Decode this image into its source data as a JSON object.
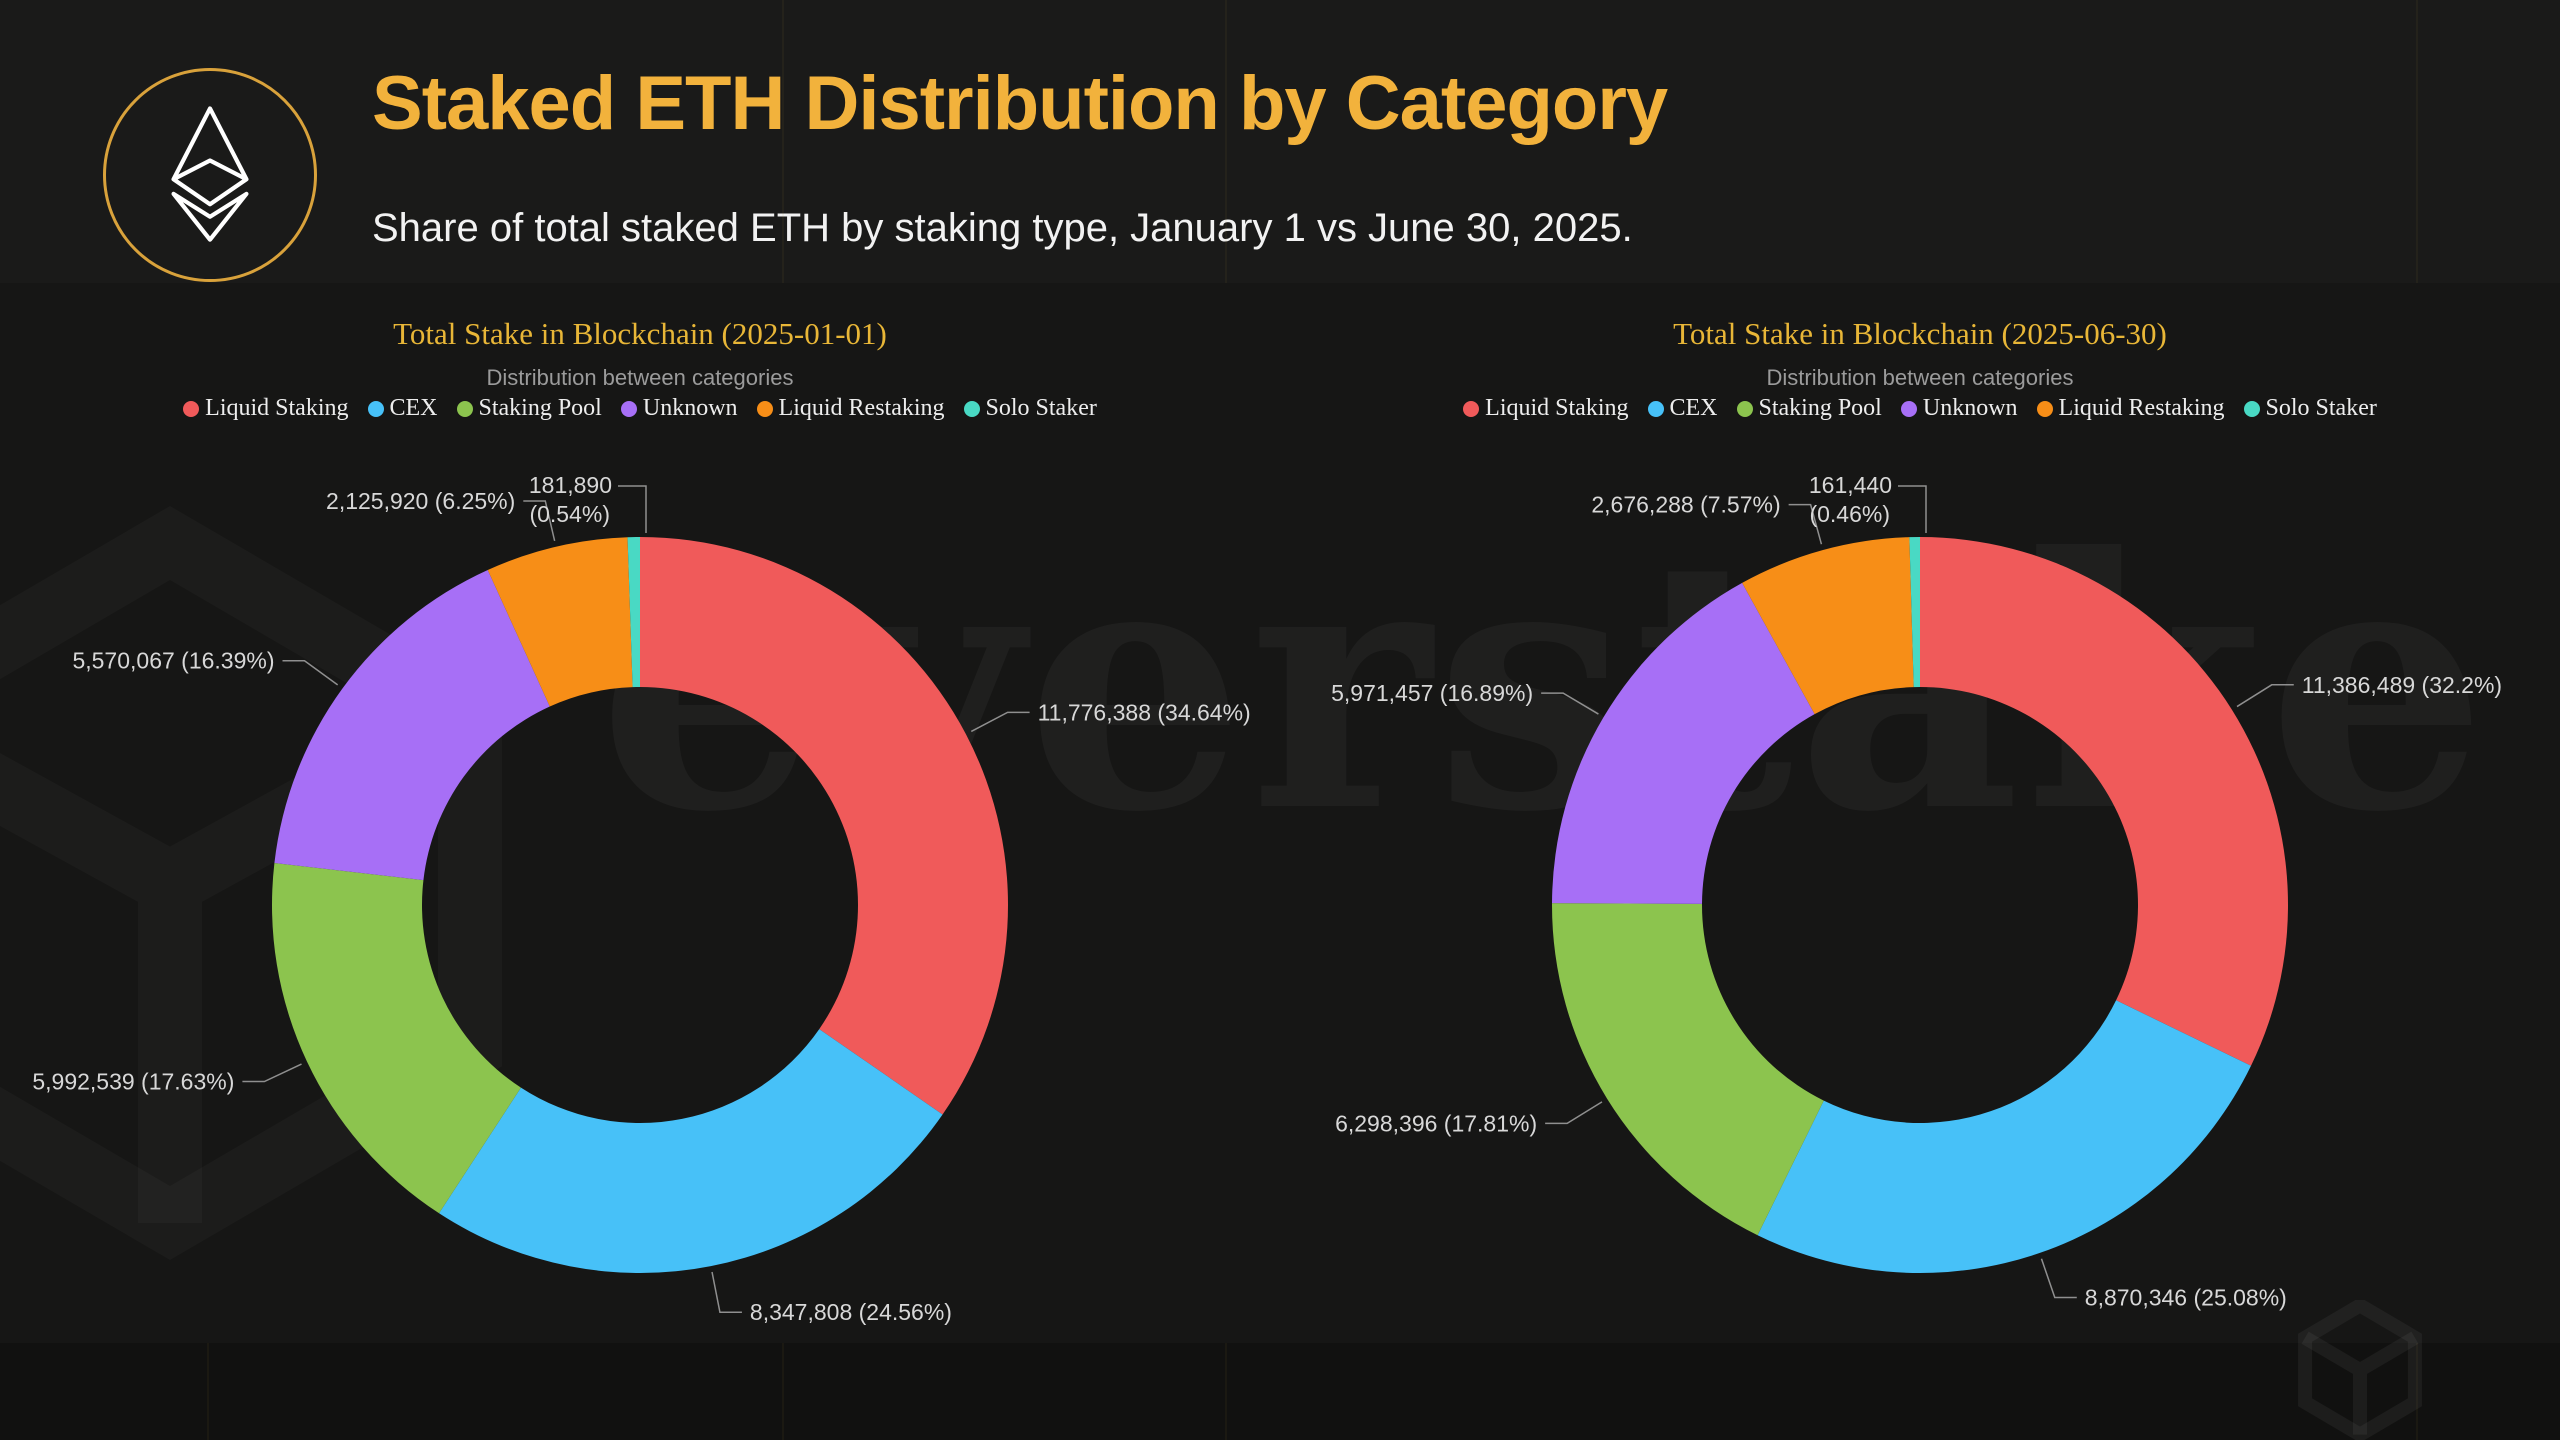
{
  "header": {
    "title": "Staked ETH Distribution by Category",
    "subtitle": "Share of total staked ETH by staking type, January 1 vs June 30, 2025.",
    "logo": "ethereum-logo",
    "accent_color": "#F2B23C"
  },
  "background": {
    "page": "#111110",
    "header_band": "#1A1A19",
    "chart_area": "#161615"
  },
  "watermark": {
    "text": "everstake"
  },
  "categories": [
    {
      "name": "Liquid Staking",
      "color": "#F05A5A"
    },
    {
      "name": "CEX",
      "color": "#47C1F8"
    },
    {
      "name": "Staking Pool",
      "color": "#8CC44E"
    },
    {
      "name": "Unknown",
      "color": "#A76FF6"
    },
    {
      "name": "Liquid Restaking",
      "color": "#F78E17"
    },
    {
      "name": "Solo Staker",
      "color": "#49D9C4"
    }
  ],
  "chart_data": [
    {
      "type": "pie",
      "donut": true,
      "title": "Total Stake in Blockchain (2025-01-01)",
      "subtitle": "Distribution between categories",
      "legend_position": "top",
      "categories": [
        "Liquid Staking",
        "CEX",
        "Staking Pool",
        "Unknown",
        "Liquid Restaking",
        "Solo Staker"
      ],
      "slices": [
        {
          "category": "Liquid Staking",
          "value": 11776388,
          "value_label": "11,776,388",
          "pct": 34.64,
          "pct_label": "34.64%"
        },
        {
          "category": "CEX",
          "value": 8347808,
          "value_label": "8,347,808",
          "pct": 24.56,
          "pct_label": "24.56%"
        },
        {
          "category": "Staking Pool",
          "value": 5992539,
          "value_label": "5,992,539",
          "pct": 17.63,
          "pct_label": "17.63%"
        },
        {
          "category": "Unknown",
          "value": 5570067,
          "value_label": "5,570,067",
          "pct": 16.39,
          "pct_label": "16.39%"
        },
        {
          "category": "Liquid Restaking",
          "value": 2125920,
          "value_label": "2,125,920",
          "pct": 6.25,
          "pct_label": "6.25%"
        },
        {
          "category": "Solo Staker",
          "value": 181890,
          "value_label": "181,890",
          "pct": 0.54,
          "pct_label": "0.54%"
        }
      ]
    },
    {
      "type": "pie",
      "donut": true,
      "title": "Total Stake in Blockchain (2025-06-30)",
      "subtitle": "Distribution between categories",
      "legend_position": "top",
      "categories": [
        "Liquid Staking",
        "CEX",
        "Staking Pool",
        "Unknown",
        "Liquid Restaking",
        "Solo Staker"
      ],
      "slices": [
        {
          "category": "Liquid Staking",
          "value": 11386489,
          "value_label": "11,386,489",
          "pct": 32.2,
          "pct_label": "32.2%"
        },
        {
          "category": "CEX",
          "value": 8870346,
          "value_label": "8,870,346",
          "pct": 25.08,
          "pct_label": "25.08%"
        },
        {
          "category": "Staking Pool",
          "value": 6298396,
          "value_label": "6,298,396",
          "pct": 17.81,
          "pct_label": "17.81%"
        },
        {
          "category": "Unknown",
          "value": 5971457,
          "value_label": "5,971,457",
          "pct": 16.89,
          "pct_label": "16.89%"
        },
        {
          "category": "Liquid Restaking",
          "value": 2676288,
          "value_label": "2,676,288",
          "pct": 7.57,
          "pct_label": "7.57%"
        },
        {
          "category": "Solo Staker",
          "value": 161440,
          "value_label": "161,440",
          "pct": 0.46,
          "pct_label": "0.46%"
        }
      ]
    }
  ]
}
